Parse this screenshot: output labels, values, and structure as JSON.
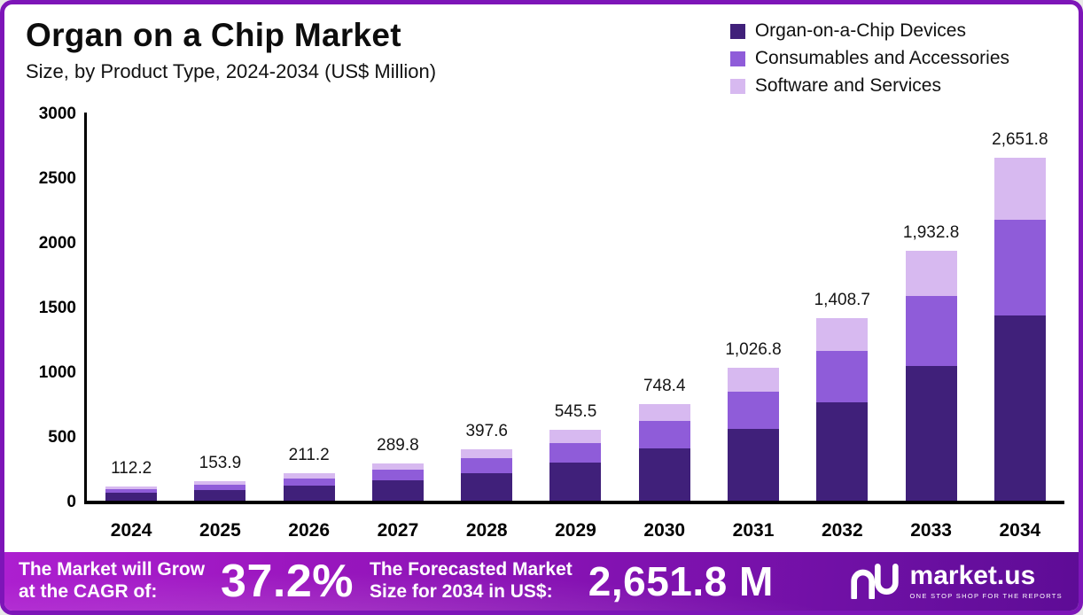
{
  "header": {
    "title": "Organ on a Chip Market",
    "subtitle": "Size, by Product Type, 2024-2034 (US$ Million)"
  },
  "legend": [
    {
      "label": "Organ-on-a-Chip Devices",
      "color": "#40207a"
    },
    {
      "label": "Consumables and Accessories",
      "color": "#8f5cd9"
    },
    {
      "label": "Software and Services",
      "color": "#d7b9f0"
    }
  ],
  "chart_data": {
    "type": "bar",
    "stacked": true,
    "title": "Organ on a Chip Market Size, by Product Type, 2024-2034 (US$ Million)",
    "categories": [
      "2024",
      "2025",
      "2026",
      "2027",
      "2028",
      "2029",
      "2030",
      "2031",
      "2032",
      "2033",
      "2034"
    ],
    "series": [
      {
        "key": "devices",
        "name": "Organ-on-a-Chip Devices",
        "color": "#40207a",
        "values": [
          60.5,
          83.0,
          114.0,
          156.5,
          214.7,
          294.5,
          404.0,
          554.5,
          760.7,
          1043.7,
          1432.0
        ]
      },
      {
        "key": "consumables",
        "name": "Consumables and Accessories",
        "color": "#8f5cd9",
        "values": [
          31.5,
          43.2,
          59.2,
          81.2,
          111.4,
          152.8,
          209.6,
          287.5,
          394.5,
          541.2,
          742.5
        ]
      },
      {
        "key": "software",
        "name": "Software and Services",
        "color": "#d7b9f0",
        "values": [
          20.2,
          27.7,
          38.0,
          52.1,
          71.5,
          98.2,
          134.8,
          184.8,
          253.5,
          347.9,
          477.3
        ]
      }
    ],
    "totals": [
      112.2,
      153.9,
      211.2,
      289.8,
      397.6,
      545.5,
      748.4,
      1026.8,
      1408.7,
      1932.8,
      2651.8
    ],
    "total_labels": [
      "112.2",
      "153.9",
      "211.2",
      "289.8",
      "397.6",
      "545.5",
      "748.4",
      "1,026.8",
      "1,408.7",
      "1,932.8",
      "2,651.8"
    ],
    "xlabel": "",
    "ylabel": "US$ Million",
    "ylim": [
      0,
      3000
    ],
    "yticks": [
      0,
      500,
      1000,
      1500,
      2000,
      2500,
      3000
    ],
    "grid": false,
    "legend_position": "top-right"
  },
  "footer": {
    "cagr_label_line1": "The Market will Grow",
    "cagr_label_line2": "at the CAGR of:",
    "cagr_value": "37.2%",
    "forecast_label_line1": "The Forecasted Market",
    "forecast_label_line2": "Size for 2034 in US$:",
    "forecast_value": "2,651.8 M",
    "brand": "market.us",
    "brand_tagline": "ONE STOP SHOP FOR THE REPORTS"
  }
}
